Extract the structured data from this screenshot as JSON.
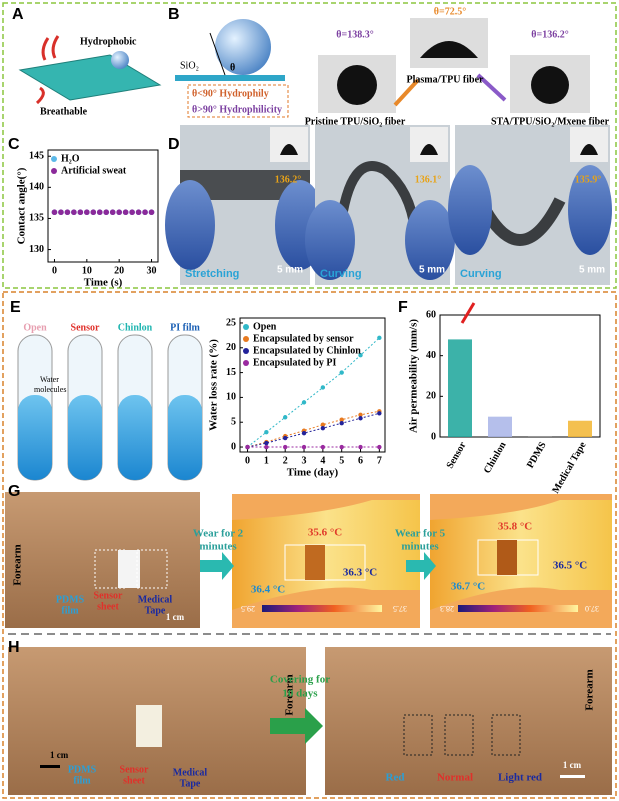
{
  "figure": {
    "A": {
      "label": "A",
      "hydrophobic": "Hydrophobic",
      "breathable": "Breathable"
    },
    "B": {
      "label": "B",
      "sio2": "SiO₂",
      "theta": "θ",
      "hydrophily": "θ<90°  Hydrophily",
      "hydrophilicity": "θ>90°  Hydrophilicity",
      "angles": [
        "θ=138.3°",
        "θ=72.5°",
        "θ=136.2°"
      ],
      "captions": [
        "Pristine TPU/SiO₂ fiber",
        "Plasma/TPU fiber",
        "STA/TPU/SiO₂/Mxene fiber"
      ]
    },
    "C": {
      "label": "C"
    },
    "D": {
      "label": "D",
      "angles": [
        "136.2°",
        "136.1°",
        "135.9°"
      ],
      "modes": [
        "Stretching",
        "Curving",
        "Curving"
      ],
      "scales": [
        "5 mm",
        "5 mm",
        "5 mm"
      ]
    },
    "E": {
      "label": "E",
      "tubes": [
        "Open",
        "Sensor",
        "Chinlon",
        "PI film"
      ],
      "water": [
        "Water",
        "molecules"
      ]
    },
    "F": {
      "label": "F"
    },
    "G": {
      "label": "G",
      "forearm": "Forearm",
      "pdms": [
        "PDMS",
        "film"
      ],
      "sensor": [
        "Sensor",
        "sheet"
      ],
      "tape": [
        "Medical",
        "Tape"
      ],
      "scale": "1 cm",
      "arrow1": [
        "Wear for 2",
        "minutes"
      ],
      "arrow2": [
        "Wear for 5",
        "minutes"
      ],
      "temps1": [
        "35.6 °C",
        "36.4 °C",
        "36.3 °C"
      ],
      "temps2": [
        "35.8 °C",
        "36.7 °C",
        "36.5 °C"
      ],
      "range1": [
        "29.5",
        "37.5"
      ],
      "range2": [
        "28.3",
        "37.0"
      ]
    },
    "H": {
      "label": "H",
      "forearm": "Forearm",
      "pdms": [
        "PDMS",
        "film"
      ],
      "sensor": [
        "Sensor",
        "sheet"
      ],
      "tape": [
        "Medical",
        "Tape"
      ],
      "scale": "1 cm",
      "arrow": [
        "Covering for",
        "10 days"
      ],
      "forearm2": "Forearm",
      "marks": [
        "Red",
        "Normal",
        "Light red"
      ],
      "scale2": "1 cm"
    }
  },
  "chart_data": [
    {
      "type": "scatter",
      "ylabel": "Contact angle(°)",
      "xlabel": "Time (s)",
      "x": [
        0,
        2,
        4,
        6,
        8,
        10,
        12,
        14,
        16,
        18,
        20,
        22,
        24,
        26,
        28,
        30
      ],
      "series": [
        {
          "name": "H₂O",
          "color": "#5bb8e8",
          "values": [
            136,
            136,
            136,
            136,
            136,
            136,
            136,
            136,
            136,
            136,
            136,
            136,
            136,
            136,
            136,
            136
          ]
        },
        {
          "name": "Artificial sweat",
          "color": "#8b2a9a",
          "values": [
            136,
            136,
            136,
            136,
            136,
            136,
            136,
            136,
            136,
            136,
            136,
            136,
            136,
            136,
            136,
            136
          ]
        }
      ],
      "xlim": [
        -2,
        32
      ],
      "ylim": [
        128,
        146
      ],
      "xticks": [
        0,
        10,
        20,
        30
      ],
      "yticks": [
        130,
        135,
        140,
        145
      ]
    },
    {
      "type": "line",
      "ylabel": "Water loss rate (%)",
      "xlabel": "Time (day)",
      "x": [
        0,
        1,
        2,
        3,
        4,
        5,
        6,
        7
      ],
      "series": [
        {
          "name": "Open",
          "color": "#30b8c8",
          "values": [
            0,
            3,
            6,
            9,
            12,
            15,
            18.5,
            22
          ]
        },
        {
          "name": "Encapsulated by sensor",
          "color": "#e87a20",
          "values": [
            0,
            1,
            2.2,
            3.3,
            4.5,
            5.5,
            6.5,
            7.2
          ]
        },
        {
          "name": "Encapsulated by Chinlon",
          "color": "#23239a",
          "values": [
            0,
            0.8,
            1.8,
            2.8,
            3.8,
            4.8,
            5.8,
            6.8
          ]
        },
        {
          "name": "Encapsulated by PI",
          "color": "#9a2aa0",
          "values": [
            0,
            0,
            0,
            0,
            0,
            0,
            0,
            0
          ]
        }
      ],
      "xlim": [
        -0.4,
        7.3
      ],
      "ylim": [
        -1,
        26
      ],
      "xticks": [
        0,
        1,
        2,
        3,
        4,
        5,
        6,
        7
      ],
      "yticks": [
        0,
        5,
        10,
        15,
        20,
        25
      ]
    },
    {
      "type": "bar",
      "ylabel": "Air permeability (mm/s)",
      "categories": [
        "Sensor",
        "Chinlon",
        "PDMS",
        "Medical Tape"
      ],
      "values": [
        48,
        10,
        0.5,
        8
      ],
      "colors": [
        "#1aa59a",
        "#a8b4e8",
        "#9a9a9a",
        "#f2b530"
      ],
      "ylim": [
        0,
        60
      ],
      "yticks": [
        0,
        20,
        40,
        60
      ]
    }
  ]
}
